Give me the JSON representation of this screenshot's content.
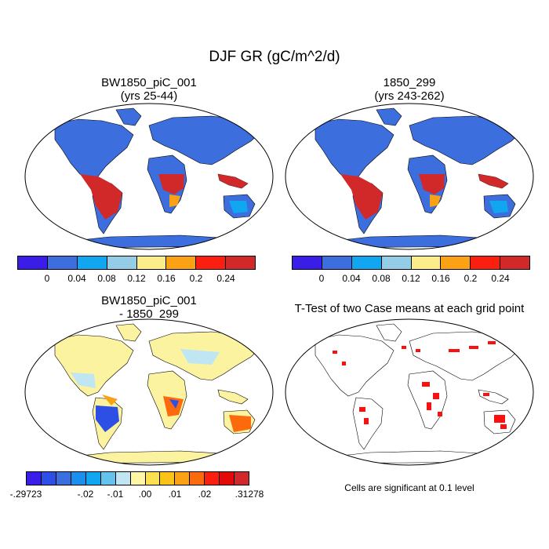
{
  "figure": {
    "title": "DJF GR (gC/m^2/d)"
  },
  "panels": {
    "case1": {
      "title_line1": "BW1850_piC_001",
      "title_line2": "(yrs 25-44)"
    },
    "case2": {
      "title_line1": "1850_299",
      "title_line2": "(yrs 243-262)"
    },
    "diff": {
      "title_line1": "BW1850_piC_001",
      "title_line2": "- 1850_299"
    },
    "ttest": {
      "title": "T-Test of two Case means at each grid point",
      "note": "Cells are significant at 0.1 level"
    }
  },
  "colorbar_main": {
    "colors": [
      "#3a1ee8",
      "#3c6ede",
      "#10a6f0",
      "#96cde6",
      "#fbee8a",
      "#fba114",
      "#fb1f0f",
      "#d12929"
    ],
    "tick_labels": [
      "0",
      "0.04",
      "0.08",
      "0.12",
      "0.16",
      "0.2",
      "0.24"
    ]
  },
  "colorbar_diff": {
    "colors": [
      "#3a1ee8",
      "#2d4fe6",
      "#3c6ede",
      "#1a8ff0",
      "#10a6f0",
      "#64c2ee",
      "#bfe6f2",
      "#fff6a6",
      "#fbe050",
      "#fbc31a",
      "#fba114",
      "#fb6a0c",
      "#fb1f0f",
      "#e20b0b",
      "#d12929"
    ],
    "tick_labels": [
      "-.29723",
      "-.02",
      "-.01",
      ".00",
      ".01",
      ".02",
      ".31278"
    ]
  },
  "map_colors": {
    "ocean": "#ffffff",
    "low_land": "#3c6ede",
    "tropical_high": "#d12929",
    "diff_neutral": "#fbf3a0",
    "significant": "#fb0f0f"
  }
}
